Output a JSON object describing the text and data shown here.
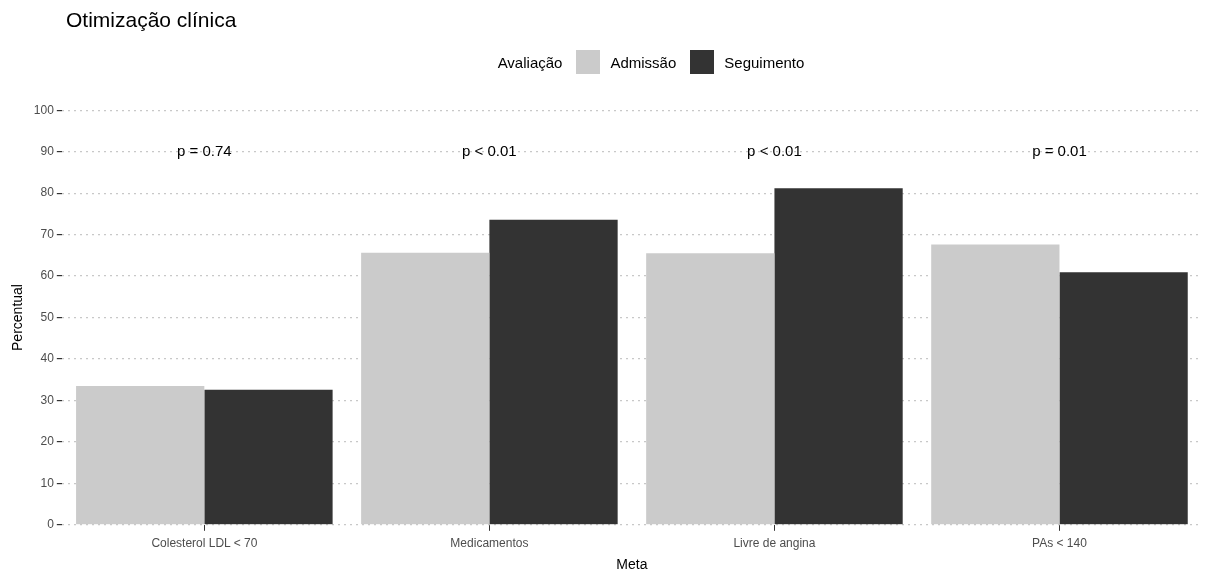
{
  "chart_data": {
    "type": "bar",
    "title": "Otimização clínica",
    "xlabel": "Meta",
    "ylabel": "Percentual",
    "legend_title": "Avaliação",
    "categories": [
      "Colesterol LDL < 70",
      "Medicamentos",
      "Livre de angina",
      "PAs < 140"
    ],
    "series": [
      {
        "name": "Admissão",
        "color": "#cbcbcb",
        "values": [
          33.5,
          65.6,
          65.5,
          67.6
        ]
      },
      {
        "name": "Seguimento",
        "color": "#333333",
        "values": [
          32.6,
          73.6,
          81.2,
          60.9
        ]
      }
    ],
    "ylim": [
      0,
      100
    ],
    "yticks": [
      0,
      10,
      20,
      30,
      40,
      50,
      60,
      70,
      80,
      90,
      100
    ],
    "grid": "y",
    "legend": "top",
    "annotations": [
      "p = 0.74",
      "p < 0.01",
      "p < 0.01",
      "p = 0.01"
    ]
  }
}
